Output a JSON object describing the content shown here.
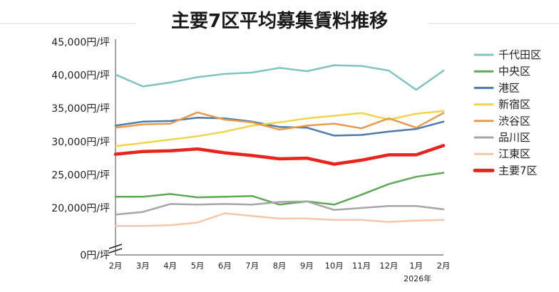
{
  "chart_data": {
    "type": "line",
    "title": "主要7区平均募集賃料推移",
    "x": [
      "2月",
      "3月",
      "4月",
      "5月",
      "6月",
      "7月",
      "8月",
      "9月",
      "10月",
      "11月",
      "12月",
      "1月",
      "2月"
    ],
    "x_note": "2026年",
    "x_note_index": 11,
    "y_ticks": [
      "0円/坪",
      "20,000円/坪",
      "25,000円/坪",
      "30,000円/坪",
      "35,000円/坪",
      "40,000円/坪",
      "45,000円/坪"
    ],
    "ylim": [
      0,
      45000
    ],
    "y_axis_break": [
      0,
      20000
    ],
    "legend_position": "right",
    "grid": false,
    "series": [
      {
        "name": "千代田区",
        "color": "#7fc4bf",
        "values": [
          40100,
          38300,
          38900,
          39700,
          40200,
          40400,
          41100,
          40600,
          41500,
          41400,
          40700,
          37800,
          40700
        ]
      },
      {
        "name": "中央区",
        "color": "#5fa85a",
        "values": [
          21700,
          21700,
          22100,
          21600,
          21700,
          21800,
          20500,
          21000,
          20500,
          22000,
          23600,
          24700,
          25300
        ]
      },
      {
        "name": "港区",
        "color": "#4f7aa8",
        "values": [
          32400,
          33000,
          33100,
          33600,
          33500,
          33000,
          32200,
          32100,
          30900,
          31000,
          31500,
          31900,
          33000
        ]
      },
      {
        "name": "新宿区",
        "color": "#f0d44a",
        "values": [
          29300,
          29800,
          30300,
          30800,
          31500,
          32400,
          32900,
          33500,
          33900,
          34300,
          33300,
          34200,
          34600
        ]
      },
      {
        "name": "渋谷区",
        "color": "#e89a4b",
        "values": [
          32100,
          32600,
          32700,
          34400,
          33300,
          32900,
          31800,
          32400,
          32700,
          32000,
          33500,
          32100,
          34300
        ]
      },
      {
        "name": "品川区",
        "color": "#a6a6a6",
        "values": [
          19000,
          19400,
          20600,
          20500,
          20600,
          20500,
          20900,
          21000,
          19700,
          20000,
          20300,
          20300,
          19800
        ]
      },
      {
        "name": "江東区",
        "color": "#f4c7a8",
        "values": [
          17300,
          17300,
          17400,
          17800,
          19200,
          18800,
          18400,
          18400,
          18200,
          18200,
          17900,
          18100,
          18200
        ]
      },
      {
        "name": "主要7区",
        "color": "#e8251c",
        "values": [
          28100,
          28500,
          28600,
          28900,
          28300,
          27900,
          27400,
          27500,
          26600,
          27200,
          28000,
          28000,
          29400
        ]
      }
    ]
  }
}
